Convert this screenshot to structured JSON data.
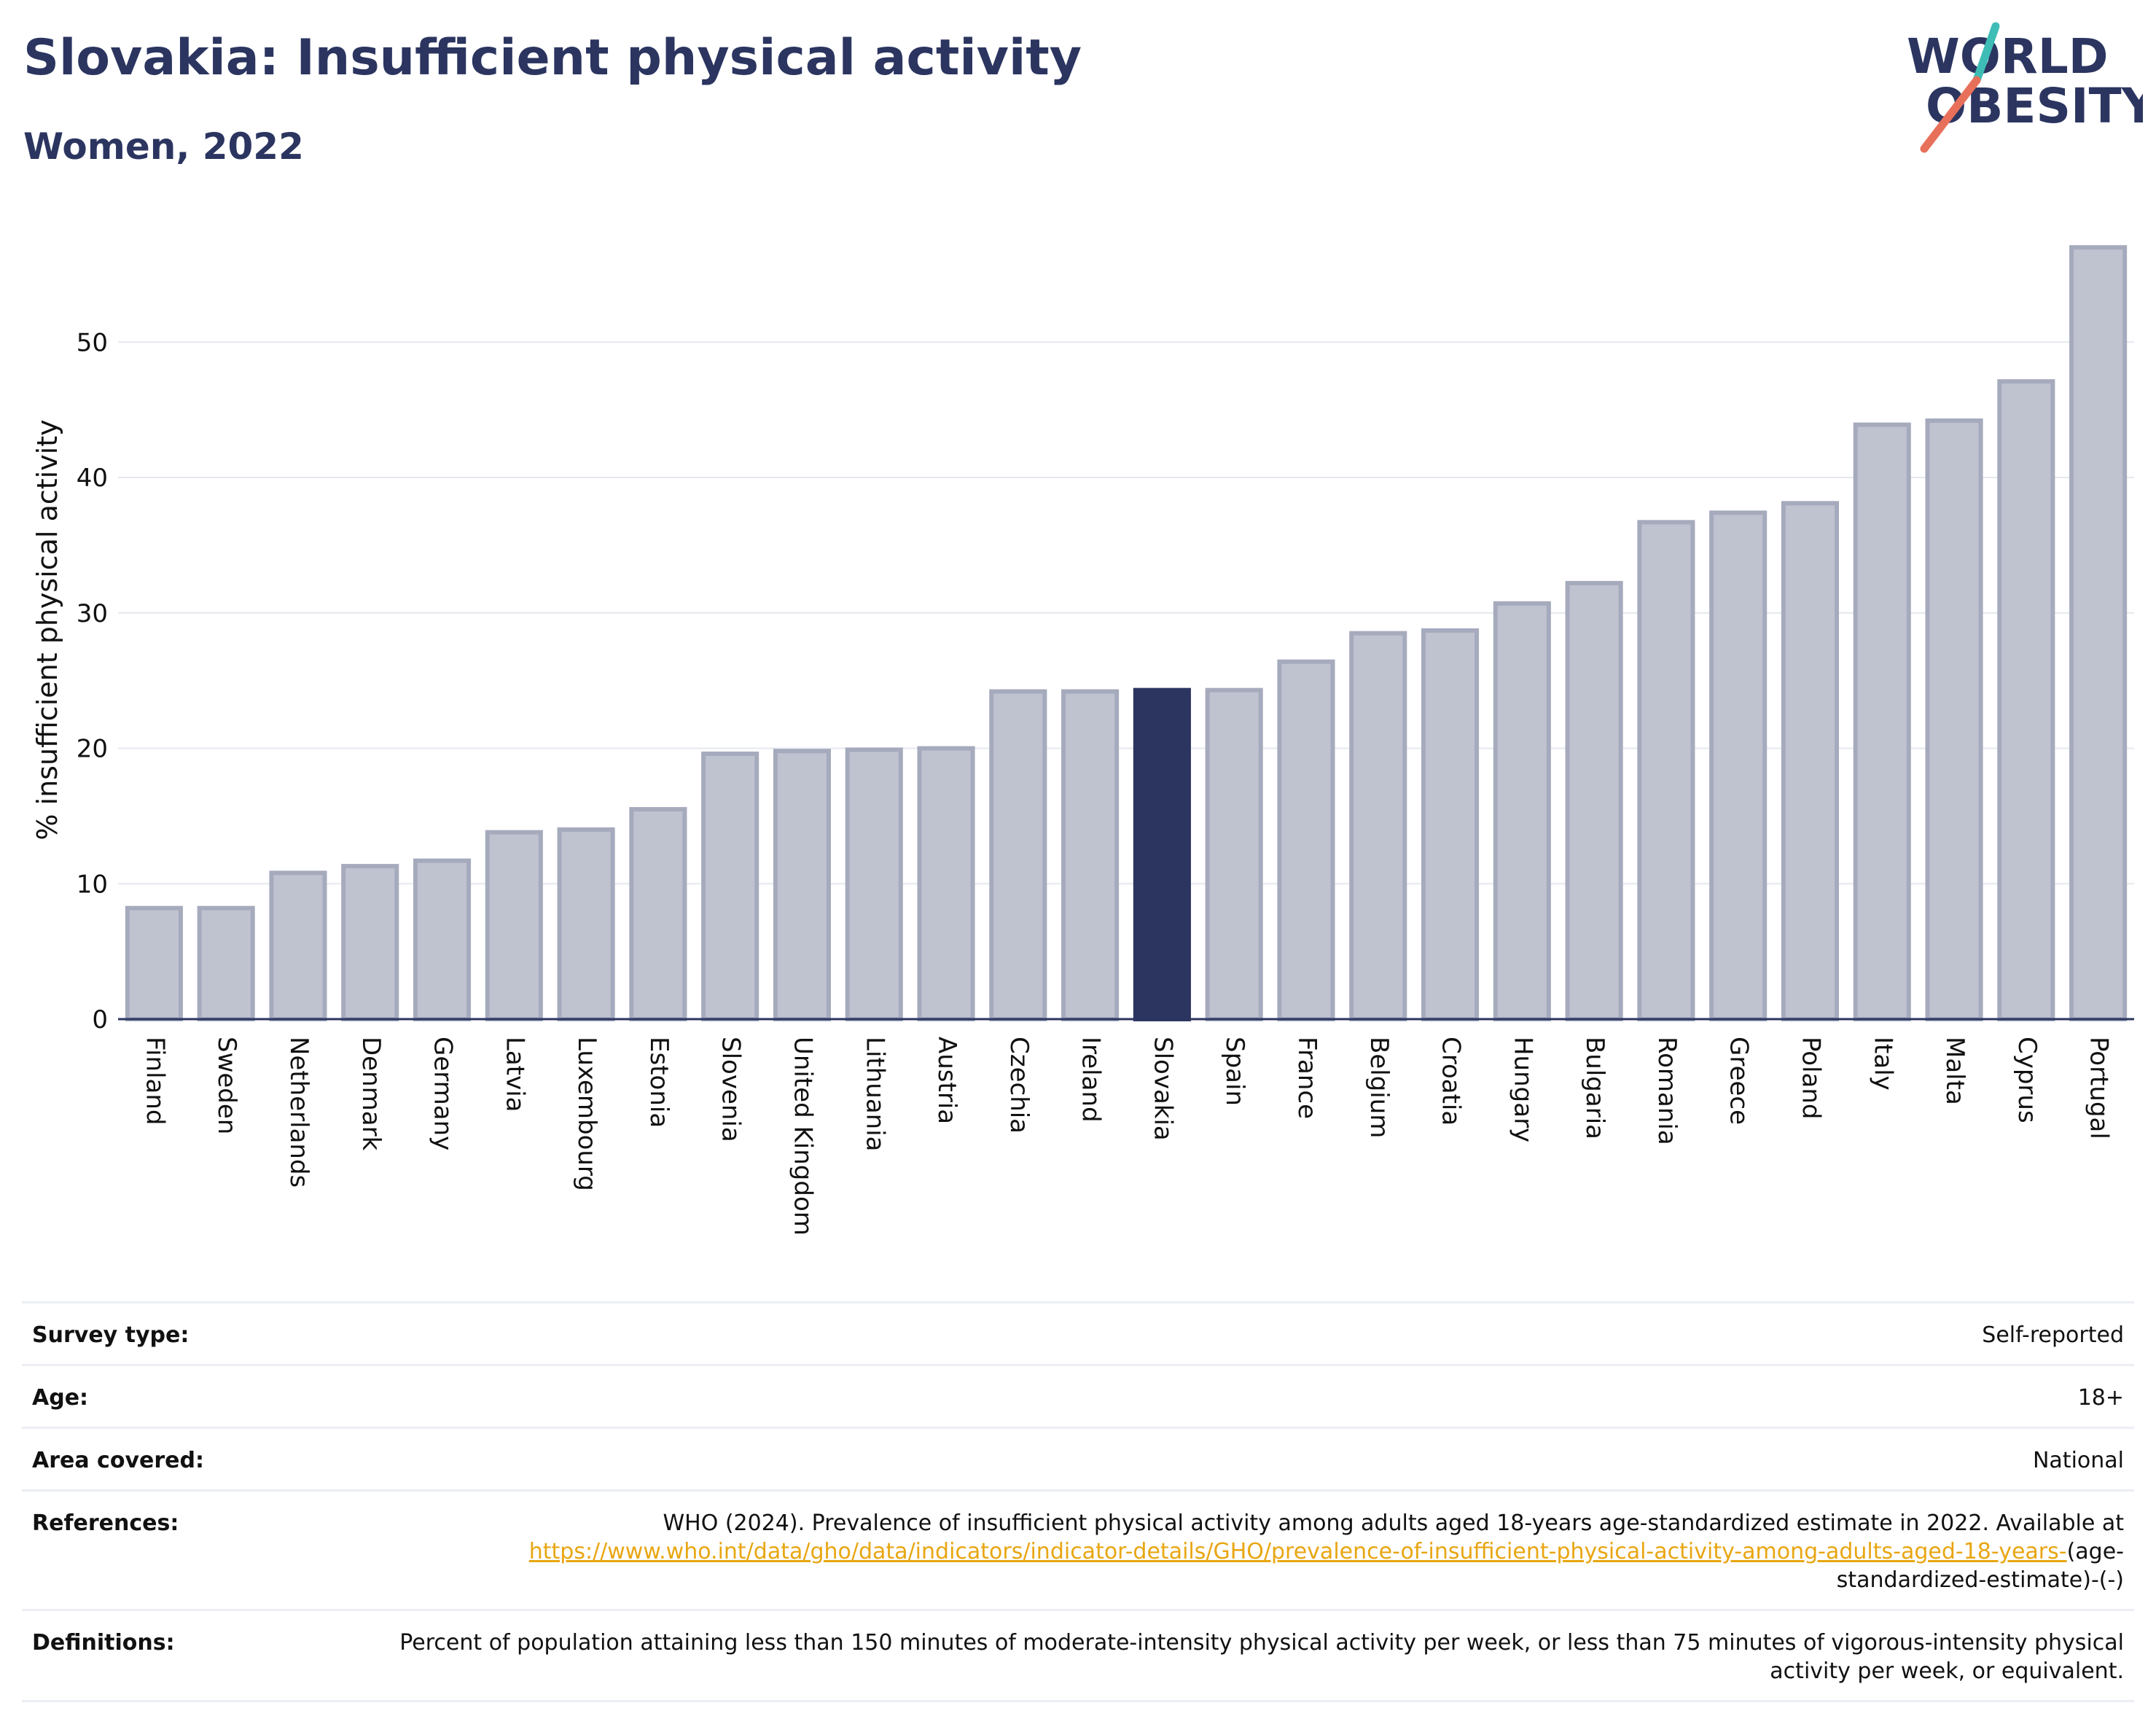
{
  "header": {
    "title": "Slovakia: Insufficient physical activity",
    "subtitle": "Women, 2022"
  },
  "logo": {
    "line1": "WORLD",
    "line2": "OBESITY",
    "colors": {
      "text": "#2b3560",
      "slash_teal": "#3dbdb5",
      "slash_coral": "#e8705a"
    }
  },
  "chart_data": {
    "type": "bar",
    "title": "",
    "xlabel": "",
    "ylabel": "% insufficient physical activity",
    "ylim": [
      0,
      57.5
    ],
    "yticks": [
      0,
      10,
      20,
      30,
      40,
      50
    ],
    "grid": true,
    "highlight": "Slovakia",
    "colors": {
      "bar": "#bfc2cf",
      "bar_edge": "#a6aabd",
      "highlight": "#2b3560"
    },
    "categories": [
      "Finland",
      "Sweden",
      "Netherlands",
      "Denmark",
      "Germany",
      "Latvia",
      "Luxembourg",
      "Estonia",
      "Slovenia",
      "United Kingdom",
      "Lithuania",
      "Austria",
      "Czechia",
      "Ireland",
      "Slovakia",
      "Spain",
      "France",
      "Belgium",
      "Croatia",
      "Hungary",
      "Bulgaria",
      "Romania",
      "Greece",
      "Poland",
      "Italy",
      "Malta",
      "Cyprus",
      "Portugal"
    ],
    "values": [
      8.2,
      8.2,
      10.8,
      11.3,
      11.7,
      13.8,
      14.0,
      15.5,
      19.6,
      19.8,
      19.9,
      20.0,
      24.2,
      24.2,
      24.3,
      24.3,
      26.4,
      28.5,
      28.7,
      30.7,
      32.2,
      36.7,
      37.4,
      38.1,
      43.9,
      44.2,
      47.1,
      57.0
    ]
  },
  "info": {
    "rows": [
      {
        "key": "Survey type:",
        "value": "Self-reported"
      },
      {
        "key": "Age:",
        "value": "18+"
      },
      {
        "key": "Area covered:",
        "value": "National"
      }
    ],
    "references": {
      "key": "References:",
      "text": "WHO (2024). Prevalence of insufficient physical activity among adults aged 18-years age-standardized estimate in 2022. Available at",
      "link": "https://www.who.int/data/gho/data/indicators/indicator-details/GHO/prevalence-of-insufficient-physical-activity-among-adults-aged-18-years-",
      "suffix": "(age-standardized-estimate)-(-)"
    },
    "definitions": {
      "key": "Definitions:",
      "value": "Percent of population attaining less than 150 minutes of moderate-intensity physical activity per week, or less than 75 minutes of vigorous-intensity physical activity per week, or equivalent."
    }
  }
}
